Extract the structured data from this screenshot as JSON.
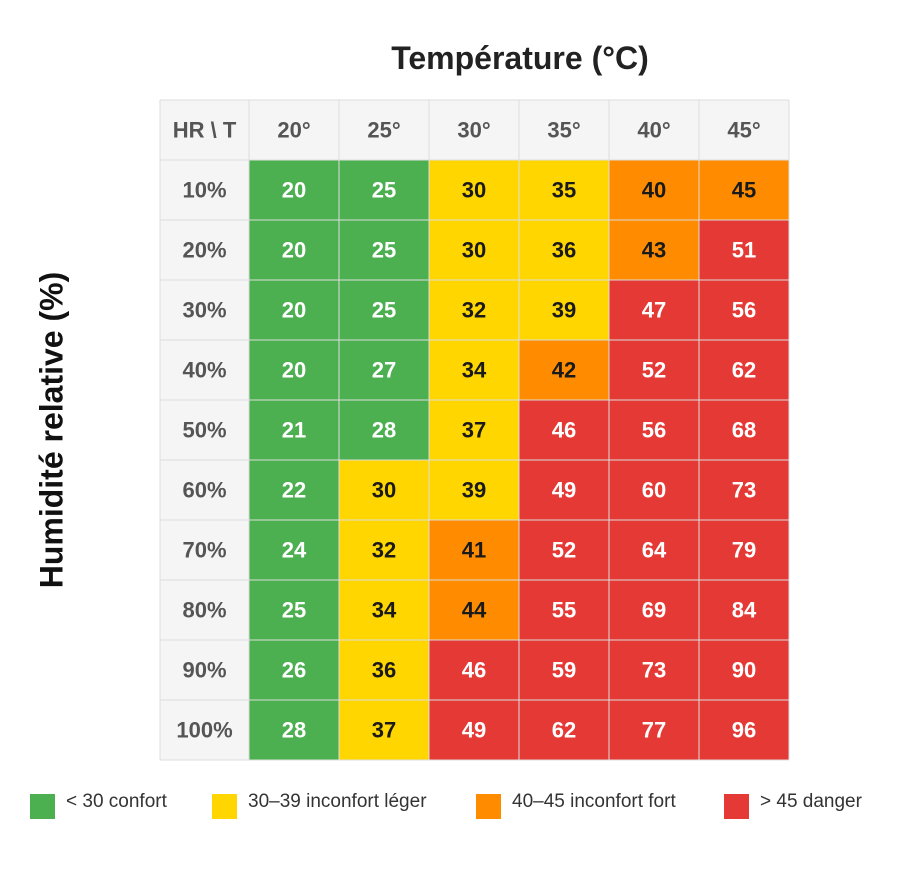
{
  "chart_data": {
    "type": "heatmap",
    "title": "Température (°C)",
    "ylabel": "Humidité relative (%)",
    "corner_label": "HR \\ T",
    "x": [
      "20°",
      "25°",
      "30°",
      "35°",
      "40°",
      "45°"
    ],
    "y": [
      "10%",
      "20%",
      "30%",
      "40%",
      "50%",
      "60%",
      "70%",
      "80%",
      "90%",
      "100%"
    ],
    "values": [
      [
        20,
        25,
        30,
        35,
        40,
        45
      ],
      [
        20,
        25,
        30,
        36,
        43,
        51
      ],
      [
        20,
        25,
        32,
        39,
        47,
        56
      ],
      [
        20,
        27,
        34,
        42,
        52,
        62
      ],
      [
        21,
        28,
        37,
        46,
        56,
        68
      ],
      [
        22,
        30,
        39,
        49,
        60,
        73
      ],
      [
        24,
        32,
        41,
        52,
        64,
        79
      ],
      [
        25,
        34,
        44,
        55,
        69,
        84
      ],
      [
        26,
        36,
        46,
        59,
        73,
        90
      ],
      [
        28,
        37,
        49,
        62,
        77,
        96
      ]
    ],
    "legend": [
      {
        "label": "< 30 confort",
        "color": "#4caf50",
        "min": null,
        "max": 29
      },
      {
        "label": "30–39 inconfort léger",
        "color": "#ffd600",
        "min": 30,
        "max": 39
      },
      {
        "label": "40–45 inconfort fort",
        "color": "#ff8c00",
        "min": 40,
        "max": 45
      },
      {
        "label": "> 45 danger",
        "color": "#e53935",
        "min": 46,
        "max": null
      }
    ],
    "legend_position": "bottom",
    "header_background": "#f5f5f5",
    "grid_line_color": "#dddddd"
  }
}
